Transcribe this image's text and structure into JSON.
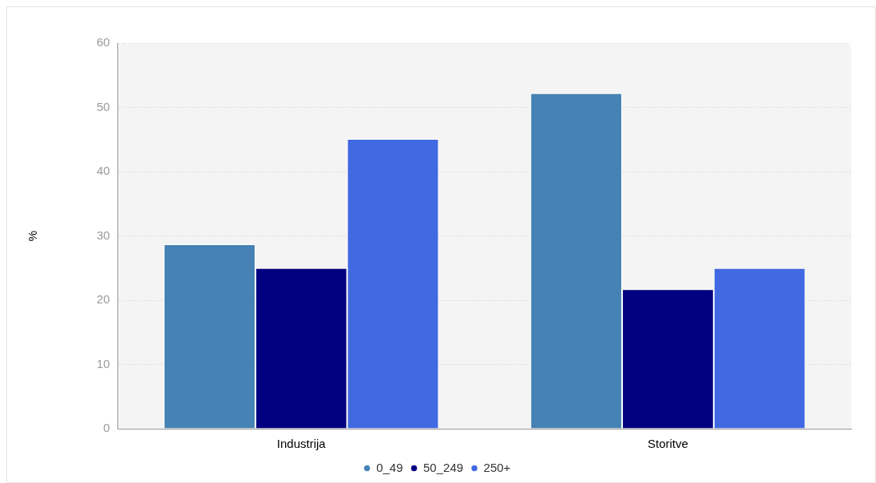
{
  "chart_data": {
    "type": "bar",
    "ylabel": "%",
    "categories": [
      "Industrija",
      "Storitve"
    ],
    "series": [
      {
        "name": "0_49",
        "color": "#4682b4",
        "values": [
          28.7,
          52.2
        ]
      },
      {
        "name": "50_249",
        "color": "#000080",
        "values": [
          25.0,
          21.7
        ]
      },
      {
        "name": "250+",
        "color": "#4169e1",
        "values": [
          45.1,
          25.0
        ]
      }
    ],
    "ylim": [
      0,
      60
    ],
    "yticks": [
      0,
      10,
      20,
      30,
      40,
      50,
      60
    ],
    "grid": "y",
    "legend": "bottom"
  }
}
